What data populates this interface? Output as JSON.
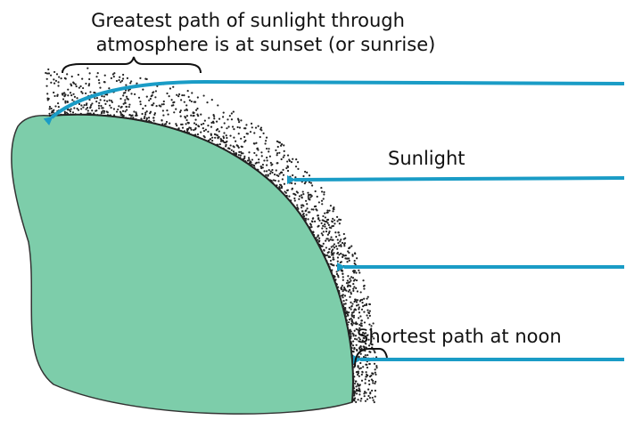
{
  "labels": {
    "sunset": [
      "Greatest path of sunlight through",
      "atmosphere is at sunset (or sunrise)"
    ],
    "sunlight": "Sunlight",
    "noon": "Shortest path at noon"
  }
}
